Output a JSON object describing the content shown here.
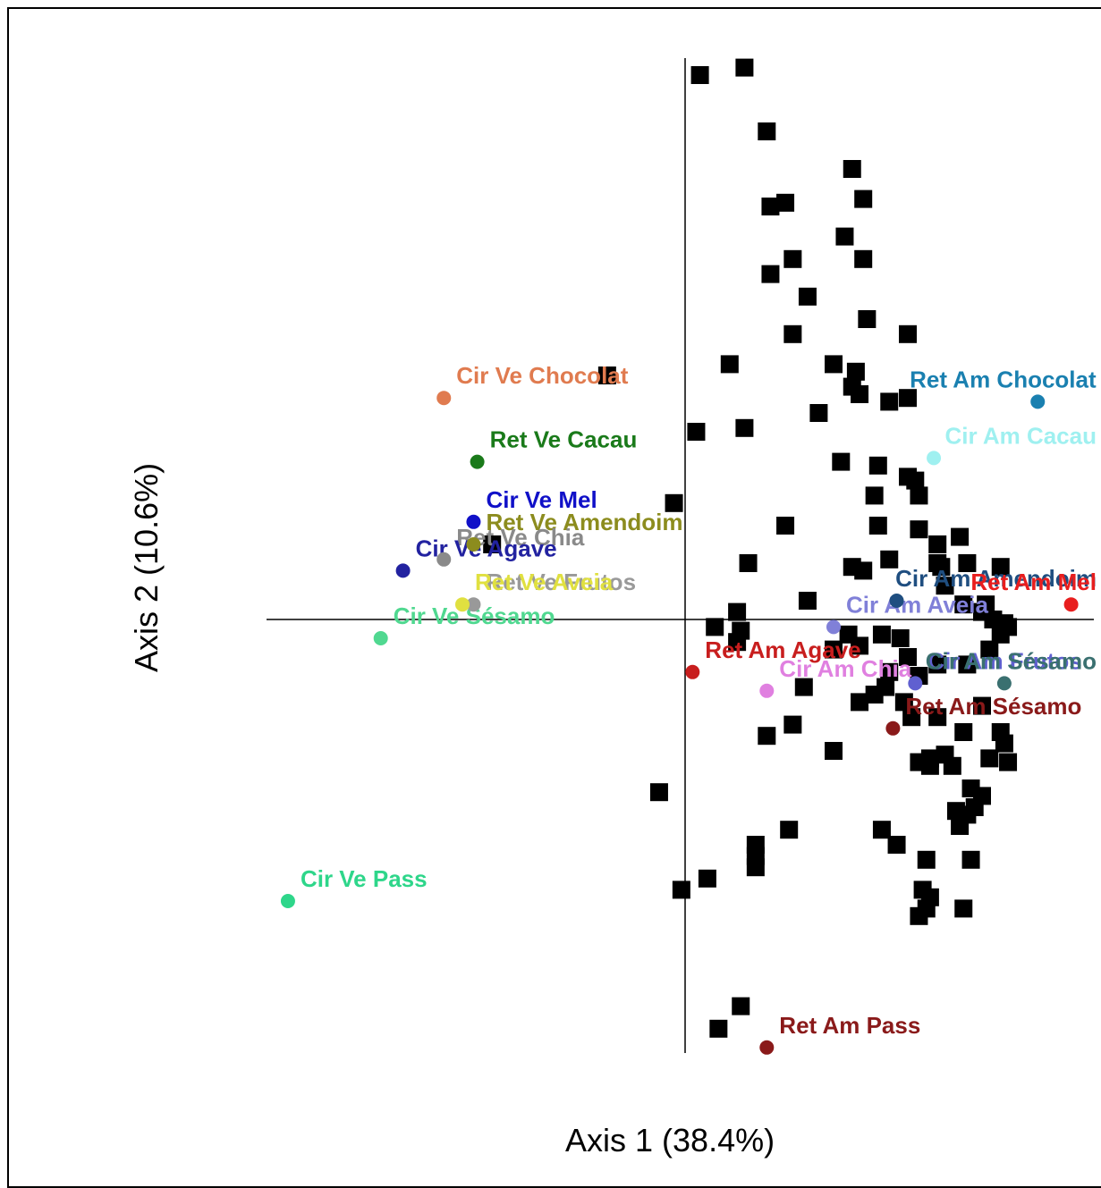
{
  "chart_data": {
    "type": "scatter",
    "xlabel": "Axis  1 (38.4%)",
    "ylabel": "Axis 2 (10.6%)",
    "xlim": [
      -1.1,
      1.1
    ],
    "ylim": [
      -1.55,
      1.55
    ],
    "grid": false,
    "reference_lines": {
      "x": 0,
      "y": 0
    },
    "species_points": [
      [
        0.04,
        1.45
      ],
      [
        0.16,
        1.47
      ],
      [
        0.22,
        1.3
      ],
      [
        0.45,
        1.2
      ],
      [
        0.48,
        1.12
      ],
      [
        0.23,
        1.1
      ],
      [
        0.27,
        1.11
      ],
      [
        0.43,
        1.02
      ],
      [
        0.48,
        0.96
      ],
      [
        0.29,
        0.96
      ],
      [
        0.23,
        0.92
      ],
      [
        0.33,
        0.86
      ],
      [
        0.49,
        0.8
      ],
      [
        0.29,
        0.76
      ],
      [
        0.6,
        0.76
      ],
      [
        0.12,
        0.68
      ],
      [
        0.4,
        0.68
      ],
      [
        0.46,
        0.66
      ],
      [
        -0.21,
        0.65
      ],
      [
        0.45,
        0.62
      ],
      [
        0.47,
        0.6
      ],
      [
        0.55,
        0.58
      ],
      [
        0.6,
        0.59
      ],
      [
        0.36,
        0.55
      ],
      [
        0.03,
        0.5
      ],
      [
        0.16,
        0.51
      ],
      [
        0.42,
        0.42
      ],
      [
        0.52,
        0.41
      ],
      [
        0.6,
        0.38
      ],
      [
        0.62,
        0.37
      ],
      [
        0.51,
        0.33
      ],
      [
        0.63,
        0.33
      ],
      [
        -0.03,
        0.31
      ],
      [
        0.27,
        0.25
      ],
      [
        0.52,
        0.25
      ],
      [
        0.63,
        0.24
      ],
      [
        0.74,
        0.22
      ],
      [
        -0.52,
        0.2
      ],
      [
        0.68,
        0.2
      ],
      [
        0.55,
        0.16
      ],
      [
        0.68,
        0.15
      ],
      [
        0.76,
        0.15
      ],
      [
        0.17,
        0.15
      ],
      [
        0.45,
        0.14
      ],
      [
        0.48,
        0.13
      ],
      [
        0.69,
        0.14
      ],
      [
        0.85,
        0.14
      ],
      [
        0.7,
        0.09
      ],
      [
        0.75,
        0.04
      ],
      [
        0.33,
        0.05
      ],
      [
        0.81,
        0.04
      ],
      [
        0.8,
        0.02
      ],
      [
        0.14,
        0.02
      ],
      [
        0.83,
        0.0
      ],
      [
        0.86,
        -0.01
      ],
      [
        0.08,
        -0.02
      ],
      [
        0.15,
        -0.03
      ],
      [
        0.44,
        -0.04
      ],
      [
        0.53,
        -0.04
      ],
      [
        0.58,
        -0.05
      ],
      [
        0.85,
        -0.04
      ],
      [
        0.87,
        -0.02
      ],
      [
        0.14,
        -0.06
      ],
      [
        0.4,
        -0.08
      ],
      [
        0.47,
        -0.07
      ],
      [
        0.82,
        -0.08
      ],
      [
        0.6,
        -0.1
      ],
      [
        0.68,
        -0.12
      ],
      [
        0.76,
        -0.12
      ],
      [
        0.55,
        -0.14
      ],
      [
        0.63,
        -0.15
      ],
      [
        0.32,
        -0.18
      ],
      [
        0.51,
        -0.2
      ],
      [
        0.54,
        -0.18
      ],
      [
        0.47,
        -0.22
      ],
      [
        0.59,
        -0.22
      ],
      [
        0.8,
        -0.23
      ],
      [
        0.61,
        -0.26
      ],
      [
        0.68,
        -0.26
      ],
      [
        0.22,
        -0.31
      ],
      [
        0.29,
        -0.28
      ],
      [
        0.75,
        -0.3
      ],
      [
        0.85,
        -0.3
      ],
      [
        0.86,
        -0.33
      ],
      [
        0.4,
        -0.35
      ],
      [
        0.82,
        -0.37
      ],
      [
        0.63,
        -0.38
      ],
      [
        0.66,
        -0.37
      ],
      [
        0.7,
        -0.36
      ],
      [
        0.66,
        -0.39
      ],
      [
        0.72,
        -0.39
      ],
      [
        0.87,
        -0.38
      ],
      [
        0.77,
        -0.45
      ],
      [
        0.8,
        -0.47
      ],
      [
        0.78,
        -0.5
      ],
      [
        -0.07,
        -0.46
      ],
      [
        0.73,
        -0.51
      ],
      [
        0.76,
        -0.52
      ],
      [
        0.74,
        -0.55
      ],
      [
        0.28,
        -0.56
      ],
      [
        0.53,
        -0.56
      ],
      [
        0.57,
        -0.6
      ],
      [
        0.19,
        -0.6
      ],
      [
        0.19,
        -0.63
      ],
      [
        0.19,
        -0.66
      ],
      [
        0.65,
        -0.64
      ],
      [
        0.77,
        -0.64
      ],
      [
        0.06,
        -0.69
      ],
      [
        -0.01,
        -0.72
      ],
      [
        0.64,
        -0.72
      ],
      [
        0.66,
        -0.74
      ],
      [
        0.65,
        -0.77
      ],
      [
        0.63,
        -0.79
      ],
      [
        0.75,
        -0.77
      ],
      [
        0.15,
        -1.03
      ],
      [
        0.09,
        -1.09
      ]
    ],
    "sample_points": [
      {
        "name": "Cir Ve Chocolat",
        "x": -0.65,
        "y": 0.59,
        "color": "#e07b4f"
      },
      {
        "name": "Ret Ve Cacau",
        "x": -0.56,
        "y": 0.42,
        "color": "#1a7a1a"
      },
      {
        "name": "Cir Ve Mel",
        "x": -0.57,
        "y": 0.26,
        "color": "#1010c8"
      },
      {
        "name": "Ret Ve Amendoim",
        "x": -0.57,
        "y": 0.2,
        "color": "#8c8c1e"
      },
      {
        "name": "Ret Ve Chia",
        "x": -0.65,
        "y": 0.16,
        "color": "#8a8a8a"
      },
      {
        "name": "Cir Ve Agave",
        "x": -0.76,
        "y": 0.13,
        "color": "#2222a0"
      },
      {
        "name": "Ret Ve Frutos",
        "x": -0.57,
        "y": 0.04,
        "color": "#999999"
      },
      {
        "name": "Ret Ve Aveia",
        "x": -0.6,
        "y": 0.04,
        "color": "#e0e040"
      },
      {
        "name": "Cir Ve Sésamo",
        "x": -0.82,
        "y": -0.05,
        "color": "#50d890"
      },
      {
        "name": "Cir Ve Pass",
        "x": -1.07,
        "y": -0.75,
        "color": "#2ed68a"
      },
      {
        "name": "Ret Am Chocolat",
        "x": 0.95,
        "y": 0.58,
        "color": "#1a80b0"
      },
      {
        "name": "Cir Am Cacau",
        "x": 0.67,
        "y": 0.43,
        "color": "#9ff0f0"
      },
      {
        "name": "Cir Am Amendoim",
        "x": 0.57,
        "y": 0.05,
        "color": "#1f4e80"
      },
      {
        "name": "Ret Am Mel",
        "x": 1.04,
        "y": 0.04,
        "color": "#e81e1e"
      },
      {
        "name": "Cir Am Aveia",
        "x": 0.4,
        "y": -0.02,
        "color": "#8080d8"
      },
      {
        "name": "Ret Am Agave",
        "x": 0.02,
        "y": -0.14,
        "color": "#c81e1e"
      },
      {
        "name": "Cir Am Chia",
        "x": 0.22,
        "y": -0.19,
        "color": "#e080e0"
      },
      {
        "name": "Cir Am Frutos",
        "x": 0.62,
        "y": -0.17,
        "color": "#6060d0"
      },
      {
        "name": "Cir Am Sésamo",
        "x": 0.86,
        "y": -0.17,
        "color": "#3a7070"
      },
      {
        "name": "Ret Am Sésamo",
        "x": 0.56,
        "y": -0.29,
        "color": "#8a1a1a"
      },
      {
        "name": "Ret Am Pass",
        "x": 0.22,
        "y": -1.14,
        "color": "#8a1a1a"
      }
    ]
  }
}
